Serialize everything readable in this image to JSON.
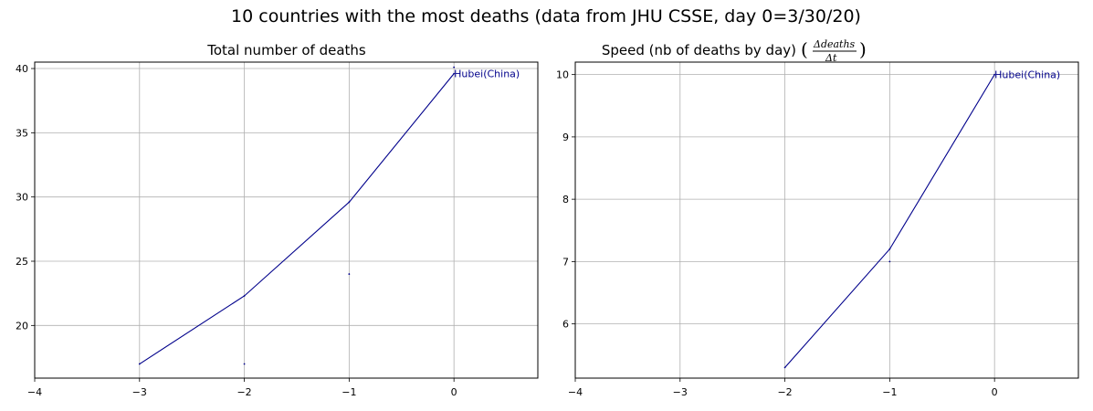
{
  "figure": {
    "suptitle": "10 countries with the most deaths (data from JHU CSSE, day 0=3/30/20)"
  },
  "chart_data": [
    {
      "type": "line",
      "title": "Total number of deaths",
      "xlim": [
        -4,
        0.8
      ],
      "ylim": [
        15.9,
        40.5
      ],
      "xticks": [
        -4,
        -3,
        -2,
        -1,
        0
      ],
      "xtick_labels": [
        "−4",
        "−3",
        "−2",
        "−1",
        "0"
      ],
      "yticks": [
        20,
        25,
        30,
        35,
        40
      ],
      "ytick_labels": [
        "20",
        "25",
        "30",
        "35",
        "40"
      ],
      "grid": true,
      "color": "#00008b",
      "series": [
        {
          "name": "Hubei(China)",
          "x": [
            -3,
            -2,
            -1,
            0
          ],
          "y": [
            17,
            22.3,
            29.6,
            39.6
          ]
        }
      ],
      "markers": [
        {
          "x": -2,
          "y": 17
        },
        {
          "x": -1,
          "y": 24
        },
        {
          "x": 0,
          "y": 40.1
        }
      ],
      "annotation": {
        "text": "Hubei(China)",
        "x": 0,
        "y": 39.6
      }
    },
    {
      "type": "line",
      "title": "Speed (nb of deaths by day)",
      "title_math": {
        "numerator": "Δdeaths",
        "denominator": "Δt"
      },
      "xlim": [
        -4,
        0.8
      ],
      "ylim": [
        5.13,
        10.2
      ],
      "xticks": [
        -4,
        -3,
        -2,
        -1,
        0
      ],
      "xtick_labels": [
        "−4",
        "−3",
        "−2",
        "−1",
        "0"
      ],
      "yticks": [
        6,
        7,
        8,
        9,
        10
      ],
      "ytick_labels": [
        "6",
        "7",
        "8",
        "9",
        "10"
      ],
      "grid": true,
      "color": "#00008b",
      "series": [
        {
          "name": "Hubei(China)",
          "x": [
            -2,
            -1,
            0
          ],
          "y": [
            5.3,
            7.2,
            10
          ]
        }
      ],
      "markers": [
        {
          "x": -1,
          "y": 7
        }
      ],
      "annotation": {
        "text": "Hubei(China)",
        "x": 0,
        "y": 10
      }
    }
  ]
}
